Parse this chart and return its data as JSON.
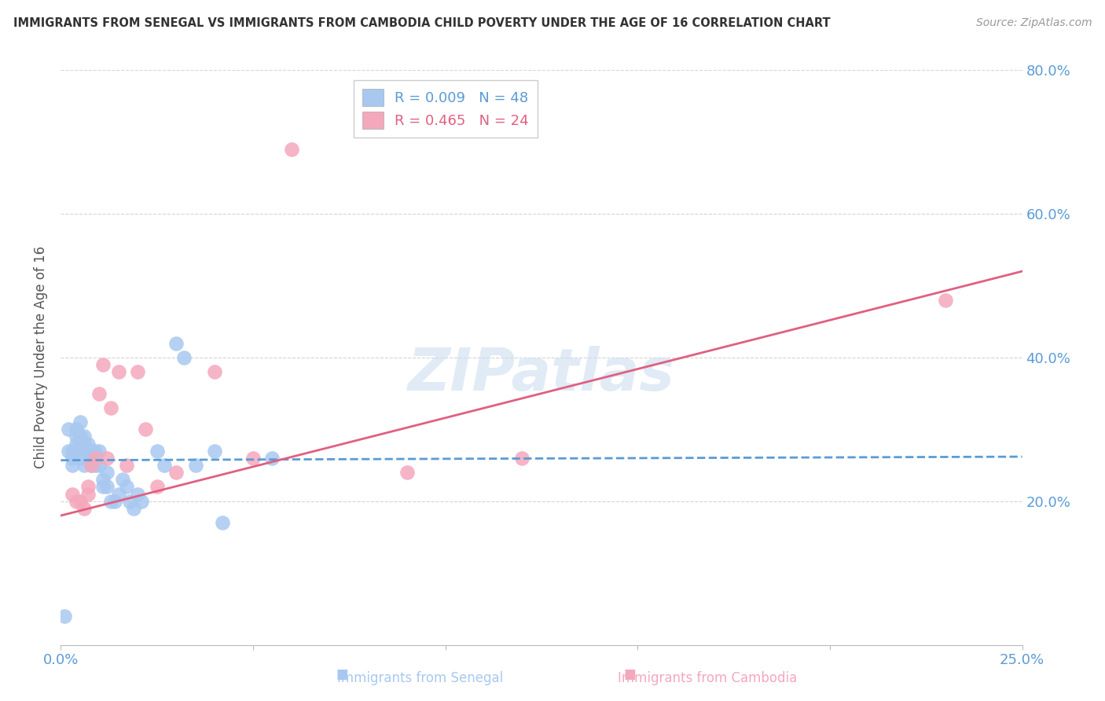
{
  "title": "IMMIGRANTS FROM SENEGAL VS IMMIGRANTS FROM CAMBODIA CHILD POVERTY UNDER THE AGE OF 16 CORRELATION CHART",
  "source": "Source: ZipAtlas.com",
  "xlabel_senegal": "Immigrants from Senegal",
  "xlabel_cambodia": "Immigrants from Cambodia",
  "ylabel": "Child Poverty Under the Age of 16",
  "xlim": [
    0.0,
    0.25
  ],
  "ylim": [
    0.0,
    0.8
  ],
  "color_senegal": "#A8C8F0",
  "color_cambodia": "#F4A8BC",
  "color_senegal_line": "#5B9BD5",
  "color_cambodia_line": "#E06080",
  "color_axis_labels": "#5B9BD5",
  "watermark": "ZIPatlas",
  "senegal_x": [
    0.001,
    0.002,
    0.002,
    0.003,
    0.003,
    0.003,
    0.004,
    0.004,
    0.004,
    0.005,
    0.005,
    0.005,
    0.005,
    0.006,
    0.006,
    0.006,
    0.006,
    0.007,
    0.007,
    0.007,
    0.008,
    0.008,
    0.008,
    0.009,
    0.009,
    0.01,
    0.01,
    0.011,
    0.011,
    0.012,
    0.012,
    0.013,
    0.014,
    0.015,
    0.016,
    0.017,
    0.018,
    0.019,
    0.02,
    0.021,
    0.025,
    0.027,
    0.03,
    0.032,
    0.035,
    0.04,
    0.042,
    0.055
  ],
  "senegal_y": [
    0.04,
    0.27,
    0.3,
    0.27,
    0.26,
    0.25,
    0.3,
    0.29,
    0.28,
    0.31,
    0.29,
    0.28,
    0.26,
    0.29,
    0.28,
    0.27,
    0.25,
    0.28,
    0.27,
    0.26,
    0.27,
    0.26,
    0.25,
    0.27,
    0.25,
    0.27,
    0.25,
    0.23,
    0.22,
    0.24,
    0.22,
    0.2,
    0.2,
    0.21,
    0.23,
    0.22,
    0.2,
    0.19,
    0.21,
    0.2,
    0.27,
    0.25,
    0.42,
    0.4,
    0.25,
    0.27,
    0.17,
    0.26
  ],
  "cambodia_x": [
    0.003,
    0.004,
    0.005,
    0.006,
    0.007,
    0.007,
    0.008,
    0.009,
    0.01,
    0.011,
    0.012,
    0.013,
    0.015,
    0.017,
    0.02,
    0.022,
    0.025,
    0.03,
    0.04,
    0.05,
    0.06,
    0.09,
    0.12,
    0.23
  ],
  "cambodia_y": [
    0.21,
    0.2,
    0.2,
    0.19,
    0.22,
    0.21,
    0.25,
    0.26,
    0.35,
    0.39,
    0.26,
    0.33,
    0.38,
    0.25,
    0.38,
    0.3,
    0.22,
    0.24,
    0.38,
    0.26,
    0.69,
    0.24,
    0.26,
    0.48
  ],
  "senegal_line_x": [
    0.0,
    0.25
  ],
  "senegal_line_y": [
    0.257,
    0.262
  ],
  "cambodia_line_x": [
    0.0,
    0.25
  ],
  "cambodia_line_y": [
    0.18,
    0.52
  ]
}
